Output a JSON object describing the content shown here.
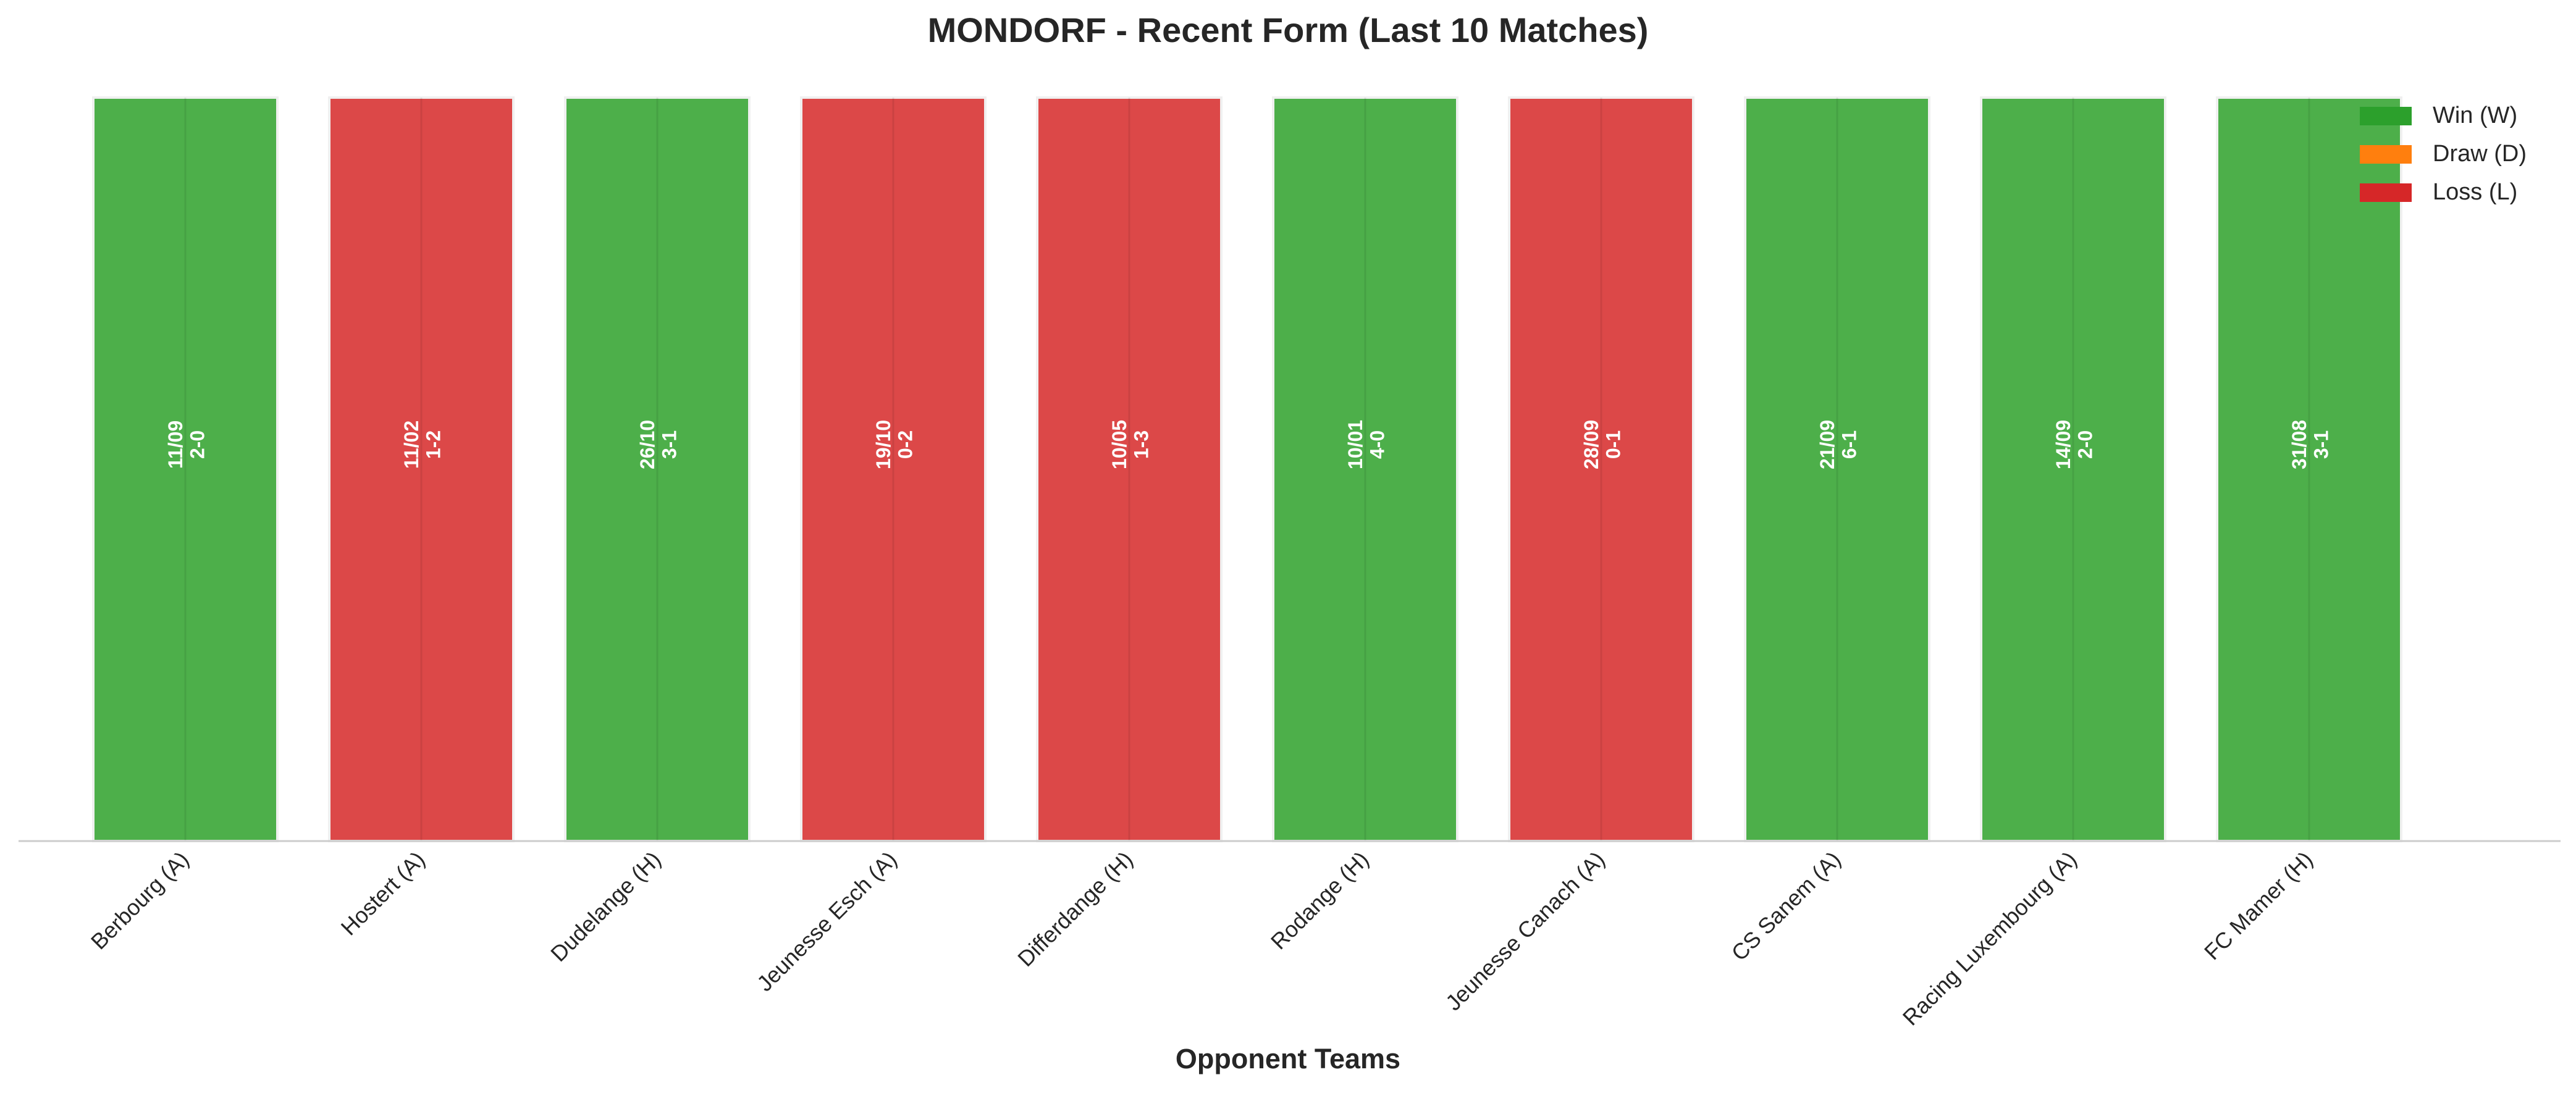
{
  "chart_data": {
    "type": "bar",
    "title": "MONDORF - Recent Form (Last 10 Matches)",
    "xlabel": "Opponent Teams",
    "ylabel": "",
    "grid": false,
    "legend_position": "top-right",
    "categories": [
      "Berbourg (A)",
      "Hostert (A)",
      "Dudelange (H)",
      "Jeunesse Esch (A)",
      "Differdange (H)",
      "Rodange (H)",
      "Jeunesse Canach (A)",
      "CS Sanem (A)",
      "Racing Luxembourg (A)",
      "FC Mamer (H)"
    ],
    "results": [
      "W",
      "L",
      "W",
      "L",
      "L",
      "W",
      "L",
      "W",
      "W",
      "W"
    ],
    "dates": [
      "11/09",
      "11/02",
      "26/10",
      "19/10",
      "10/05",
      "10/01",
      "28/09",
      "21/09",
      "14/09",
      "31/08"
    ],
    "scores": [
      "2-0",
      "1-2",
      "3-1",
      "0-2",
      "1-3",
      "4-0",
      "0-1",
      "6-1",
      "2-0",
      "3-1"
    ],
    "values": [
      1,
      1,
      1,
      1,
      1,
      1,
      1,
      1,
      1,
      1
    ],
    "ylim": [
      0,
      1
    ],
    "legend": [
      {
        "key": "W",
        "label": "Win (W)",
        "color": "#2ca02c"
      },
      {
        "key": "D",
        "label": "Draw (D)",
        "color": "#ff7f0e"
      },
      {
        "key": "L",
        "label": "Loss (L)",
        "color": "#d62728"
      }
    ],
    "colors": {
      "W": "#4daf4a",
      "D": "#ff7f0e",
      "L": "#dc4848",
      "axis": "#cccccc"
    }
  }
}
